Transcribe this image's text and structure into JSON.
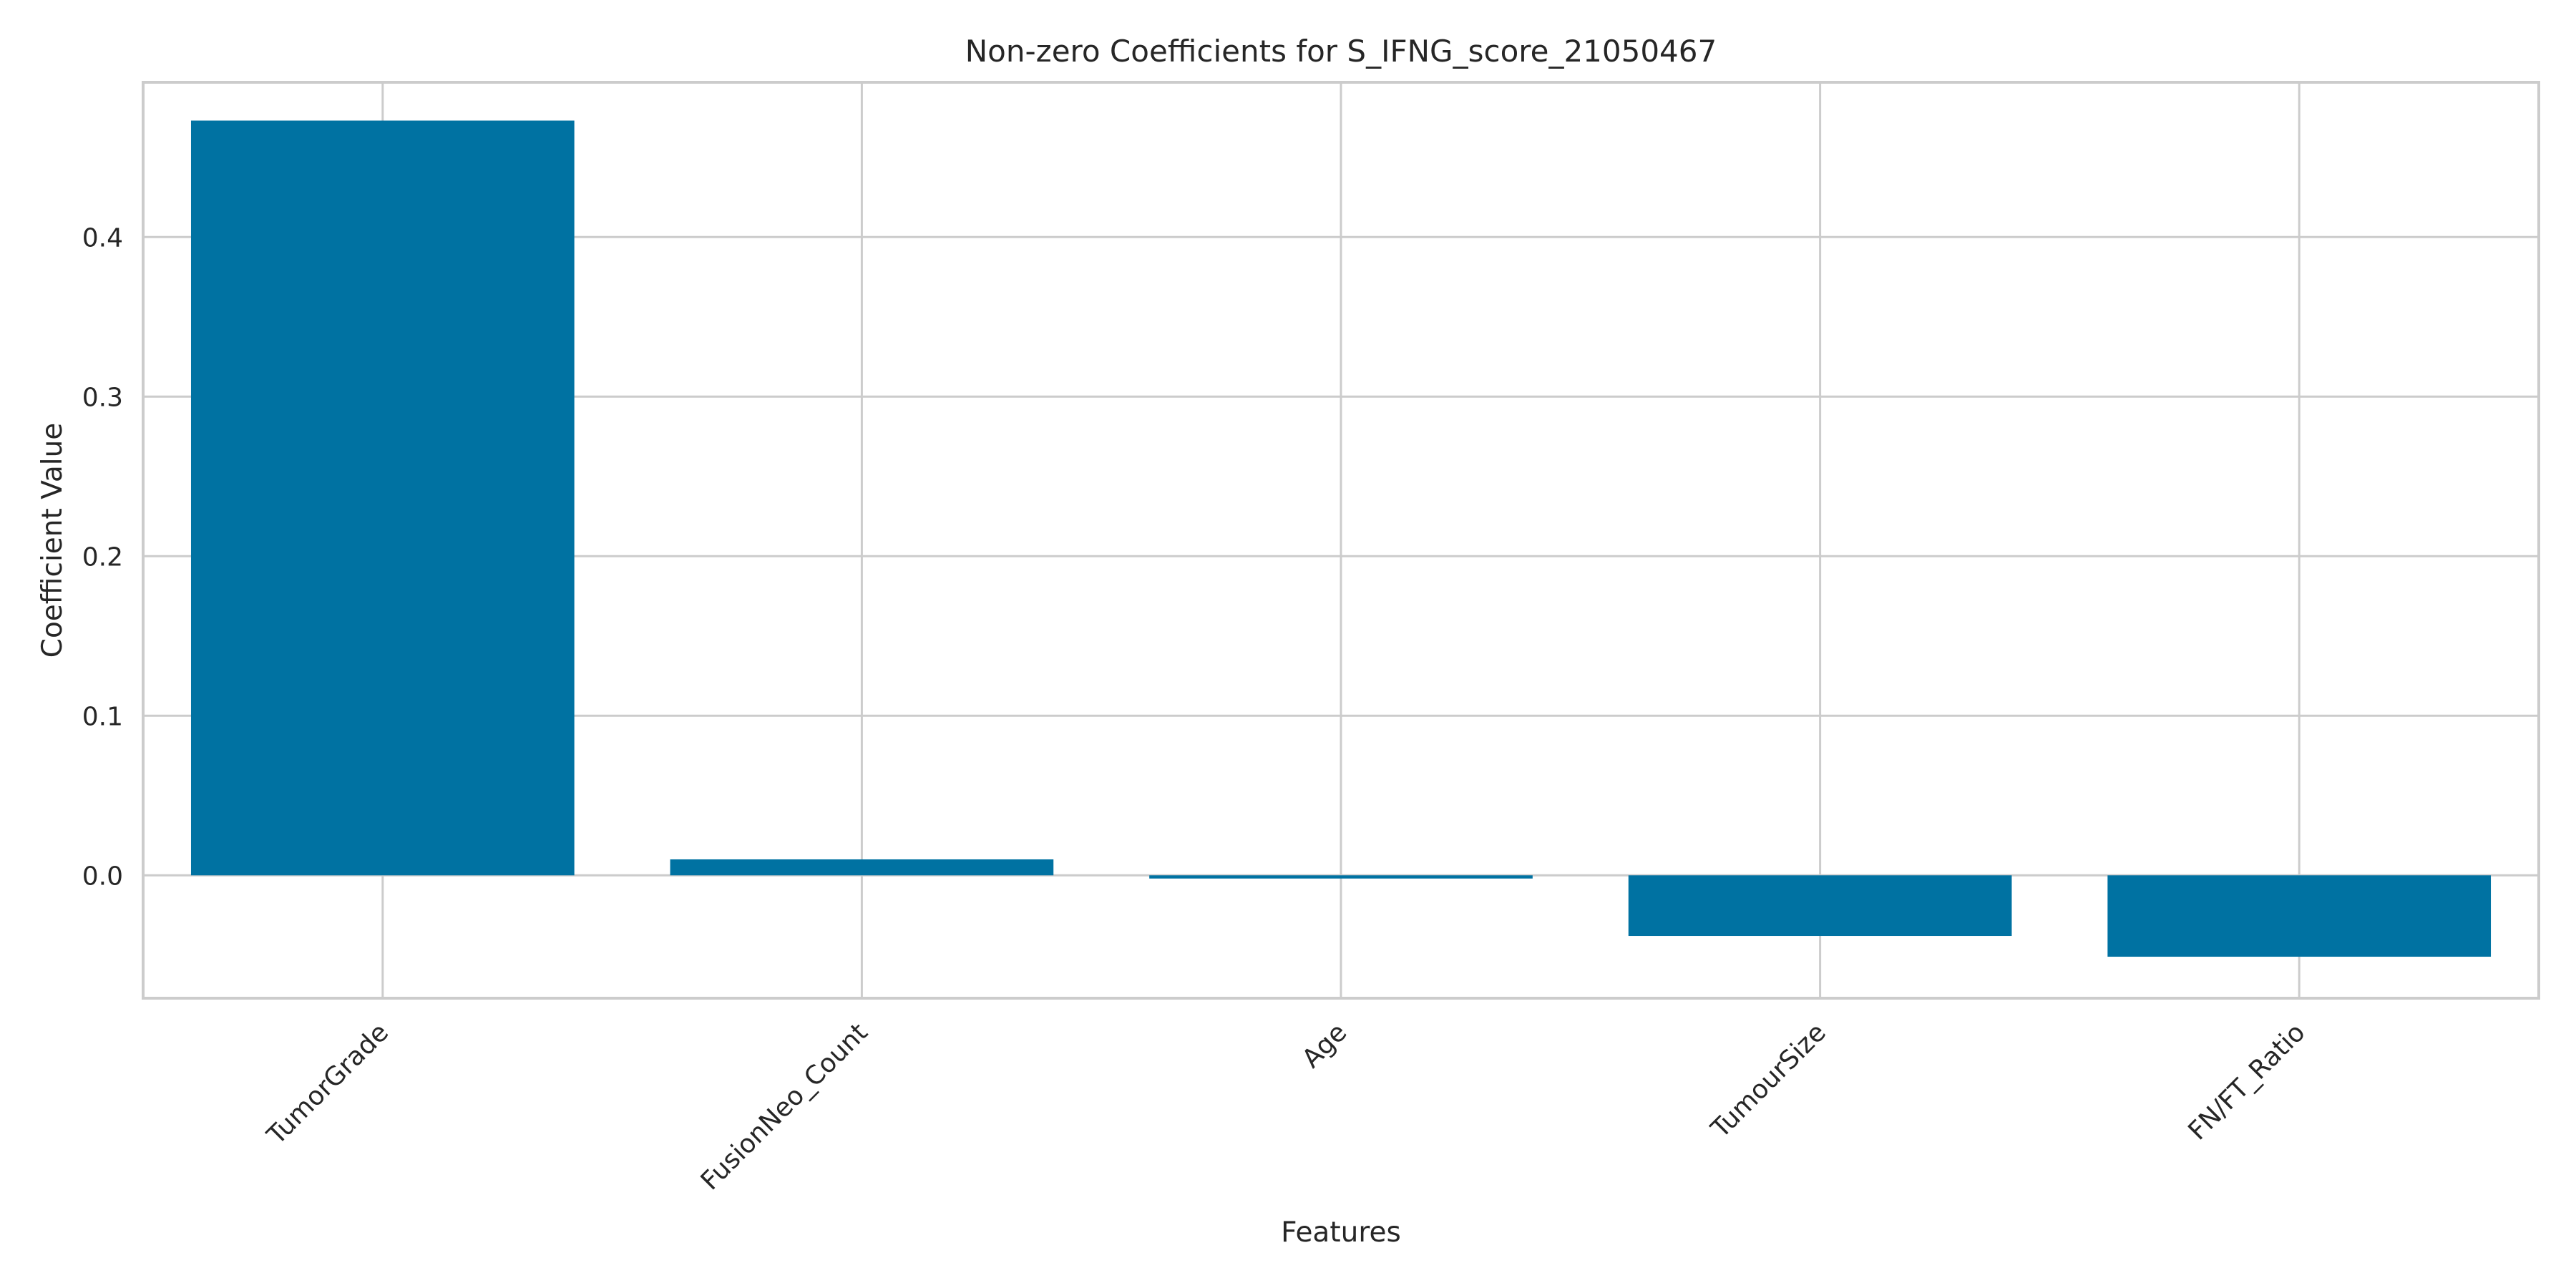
{
  "chart_data": {
    "type": "bar",
    "title": "Non-zero Coefficients for S_IFNG_score_21050467",
    "xlabel": "Features",
    "ylabel": "Coefficient Value",
    "categories": [
      "TumorGrade",
      "FusionNeo_Count",
      "Age",
      "TumourSize",
      "FN/FT_Ratio"
    ],
    "values": [
      0.473,
      0.01,
      -0.002,
      -0.038,
      -0.051
    ],
    "ylim": [
      -0.077,
      0.497
    ],
    "yticks": [
      0.0,
      0.1,
      0.2,
      0.3,
      0.4
    ],
    "ytick_labels": [
      "0.0",
      "0.1",
      "0.2",
      "0.3",
      "0.4"
    ],
    "grid": true,
    "bar_color": "#0072A2",
    "grid_color": "#cccccc"
  }
}
